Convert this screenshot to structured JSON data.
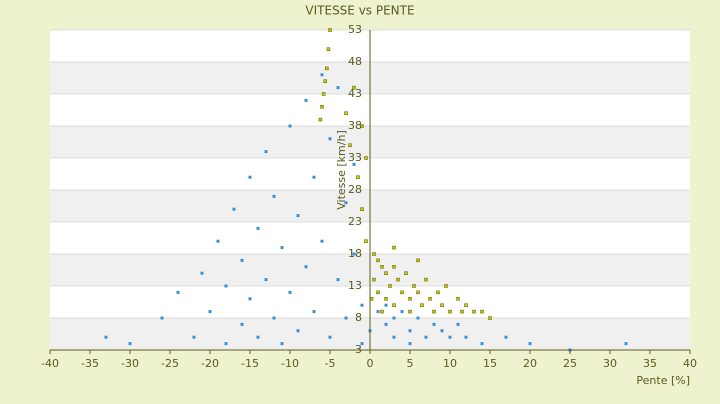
{
  "chart_data": {
    "type": "scatter",
    "title": "VITESSE vs PENTE",
    "x_label": "Pente [%]",
    "y_label": "Vitesse [km/h]",
    "xlim": [
      -40,
      40
    ],
    "xticks": [
      -40,
      -35,
      -30,
      -25,
      -20,
      -15,
      -10,
      -5,
      0,
      5,
      10,
      15,
      20,
      25,
      30,
      35,
      40
    ],
    "ylim": [
      3,
      53
    ],
    "yticks": [
      3,
      8,
      13,
      18,
      23,
      28,
      33,
      38,
      43,
      48,
      53
    ],
    "grid": true,
    "series": [
      {
        "color": "#3a8fd6",
        "x": [
          -26,
          -24,
          -22,
          -21,
          -20,
          -19,
          -18,
          -18,
          -17,
          -16,
          -16,
          -15,
          -15,
          -14,
          -14,
          -13,
          -13,
          -12,
          -12,
          -11,
          -11,
          -10,
          -10,
          -9,
          -9,
          -8,
          -8,
          -7,
          -7,
          -6,
          -6,
          -5,
          -5,
          -4,
          -4,
          -3,
          -3,
          -2,
          -2,
          -1,
          -1,
          0,
          1,
          2,
          2,
          3,
          3,
          4,
          5,
          5,
          6,
          7,
          8,
          9,
          10,
          11,
          12,
          14,
          17,
          20,
          -30,
          -33,
          25,
          32
        ],
        "values": [
          8,
          12,
          5,
          15,
          9,
          20,
          4,
          13,
          25,
          7,
          17,
          30,
          11,
          5,
          22,
          14,
          34,
          8,
          27,
          19,
          4,
          38,
          12,
          24,
          6,
          42,
          16,
          30,
          9,
          46,
          20,
          36,
          5,
          44,
          14,
          26,
          8,
          18,
          32,
          10,
          4,
          6,
          9,
          7,
          10,
          5,
          8,
          9,
          6,
          4,
          8,
          5,
          7,
          6,
          5,
          7,
          5,
          4,
          5,
          4,
          4,
          5,
          3,
          4
        ]
      },
      {
        "color": "#c8c800",
        "x": [
          -5,
          -5.2,
          -5.4,
          -5.6,
          -5.8,
          -6,
          -6.2,
          -3,
          -2.5,
          -2,
          -1.5,
          -1,
          -1,
          -0.5,
          -0.5,
          0.5,
          0.5,
          1,
          1,
          1.5,
          2,
          2,
          2.5,
          3,
          3,
          3.5,
          4,
          4.5,
          5,
          5,
          5.5,
          6,
          6.5,
          7,
          7.5,
          8,
          8.5,
          9,
          9.5,
          10,
          11,
          11.5,
          12,
          13,
          14,
          15,
          3,
          6,
          1.5,
          0.2
        ],
        "values": [
          53,
          50,
          47,
          45,
          43,
          41,
          39,
          40,
          35,
          44,
          30,
          38,
          25,
          20,
          33,
          18,
          14,
          17,
          12,
          16,
          15,
          11,
          13,
          16,
          10,
          14,
          12,
          15,
          11,
          9,
          13,
          12,
          10,
          14,
          11,
          9,
          12,
          10,
          13,
          9,
          11,
          9,
          10,
          9,
          9,
          8,
          19,
          17,
          9,
          11
        ]
      }
    ]
  }
}
